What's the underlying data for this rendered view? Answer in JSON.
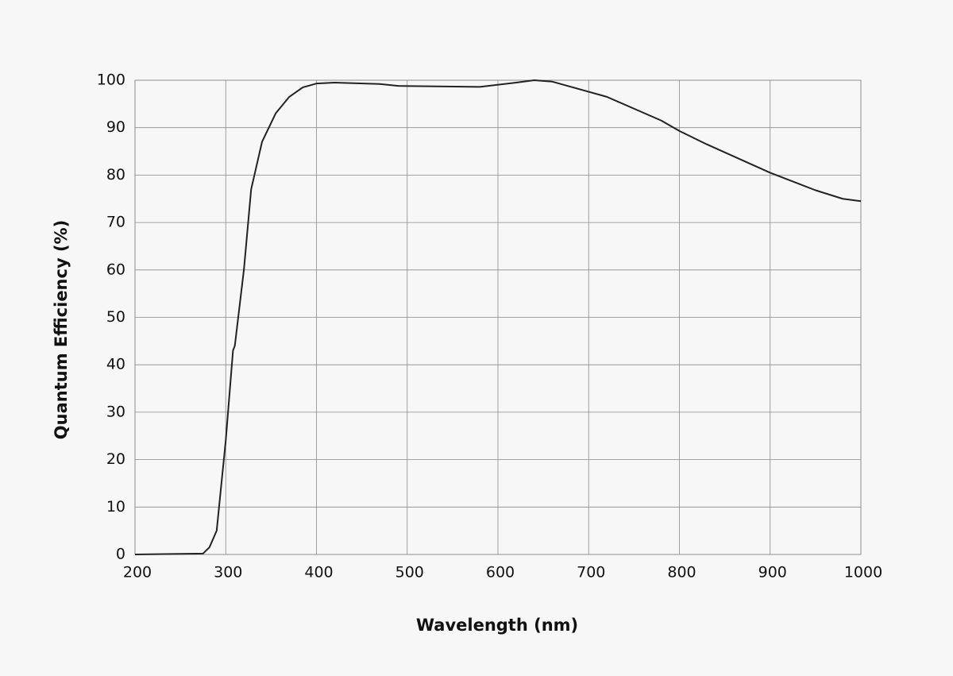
{
  "chart_data": {
    "type": "line",
    "x_label": "Wavelength (nm)",
    "y_label": "Quantum Efficiency (%)",
    "x": [
      200,
      275,
      282,
      290,
      300,
      308,
      310,
      320,
      328,
      340,
      355,
      370,
      385,
      400,
      420,
      470,
      490,
      580,
      620,
      640,
      660,
      720,
      780,
      800,
      830,
      900,
      950,
      980,
      1000
    ],
    "series": [
      {
        "color": "#222222",
        "values": [
          0,
          0.2,
          1.5,
          5,
          24,
          43,
          44,
          60,
          77,
          87,
          93,
          96.5,
          98.5,
          99.3,
          99.5,
          99.2,
          98.8,
          98.6,
          99.5,
          100,
          99.7,
          96.5,
          91.5,
          89.3,
          86.5,
          80.5,
          76.8,
          75,
          74.5
        ]
      }
    ],
    "xlim": [
      200,
      1000
    ],
    "xticks": [
      200,
      300,
      400,
      500,
      600,
      700,
      800,
      900,
      1000
    ],
    "ylim": [
      0,
      100
    ],
    "yticks": [
      0,
      10,
      20,
      30,
      40,
      50,
      60,
      70,
      80,
      90,
      100
    ],
    "grid": true
  }
}
